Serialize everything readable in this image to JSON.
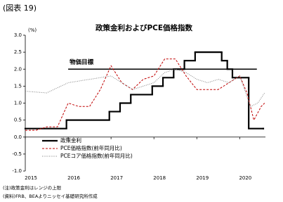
{
  "header": "(図表 19)",
  "chart_data": {
    "type": "line",
    "title": "政策金利およびPCE価格指数",
    "y_unit": "(%)",
    "xlim": [
      2015,
      2020.6
    ],
    "xticks": [
      2015,
      2016,
      2017,
      2018,
      2019,
      2020
    ],
    "ylim": [
      -1,
      3
    ],
    "yticks": [
      {
        "value": -1,
        "label": "-1.0"
      },
      {
        "value": -0.5,
        "label": "-0.5"
      },
      {
        "value": 0,
        "label": "0.0"
      },
      {
        "value": 0.5,
        "label": "0.5"
      },
      {
        "value": 1,
        "label": "1.0"
      },
      {
        "value": 1.5,
        "label": "1.5"
      },
      {
        "value": 2,
        "label": "2.0"
      },
      {
        "value": 2.5,
        "label": "2.5"
      },
      {
        "value": 3,
        "label": "3.0"
      }
    ],
    "zero_line": true,
    "target": {
      "label": "物価目標",
      "value": 2,
      "x_range": [
        2016,
        2020.4
      ]
    },
    "legend": "bottom-left",
    "series": [
      {
        "name": "政策金利",
        "color": "#000000",
        "style": "step",
        "width": 2.2,
        "x": [
          2015,
          2015.96,
          2016.96,
          2017.21,
          2017.46,
          2017.96,
          2018.21,
          2018.46,
          2018.71,
          2018.96,
          2019.58,
          2019.71,
          2019.83,
          2020.21,
          2020.55
        ],
        "values": [
          0.25,
          0.5,
          0.75,
          1.0,
          1.25,
          1.5,
          1.75,
          2.0,
          2.25,
          2.5,
          2.25,
          2.0,
          1.75,
          0.25,
          0.25
        ]
      },
      {
        "name": "PCE価格指数(前年同月比)",
        "color": "#c00000",
        "style": "dashed",
        "width": 1,
        "x": [
          2015,
          2015.25,
          2015.5,
          2015.75,
          2016,
          2016.25,
          2016.5,
          2016.75,
          2017,
          2017.25,
          2017.5,
          2017.75,
          2018,
          2018.25,
          2018.5,
          2018.75,
          2019,
          2019.25,
          2019.5,
          2019.75,
          2020,
          2020.17,
          2020.33,
          2020.5,
          2020.58
        ],
        "values": [
          0.2,
          0.2,
          0.3,
          0.3,
          1.0,
          0.9,
          0.9,
          1.4,
          2.1,
          1.6,
          1.4,
          1.7,
          1.8,
          2.3,
          2.3,
          1.8,
          1.4,
          1.4,
          1.4,
          1.6,
          1.8,
          1.3,
          0.5,
          0.9,
          1.0
        ]
      },
      {
        "name": "PCEコア価格指数(前年同月比)",
        "color": "#808080",
        "style": "dotted",
        "width": 1,
        "x": [
          2015,
          2015.5,
          2016,
          2016.5,
          2017,
          2017.25,
          2017.5,
          2017.75,
          2018,
          2018.25,
          2018.5,
          2018.75,
          2019,
          2019.25,
          2019.5,
          2019.75,
          2020,
          2020.25,
          2020.42,
          2020.58
        ],
        "values": [
          1.35,
          1.3,
          1.6,
          1.7,
          1.8,
          1.6,
          1.4,
          1.5,
          1.6,
          1.9,
          2.0,
          1.9,
          1.7,
          1.6,
          1.7,
          1.6,
          1.8,
          0.9,
          1.0,
          1.3
        ]
      }
    ]
  },
  "notes": [
    "(注)政策金利はレンジの上限",
    "(資料)FRB、BEAよりニッセイ基礎研究所作成"
  ]
}
